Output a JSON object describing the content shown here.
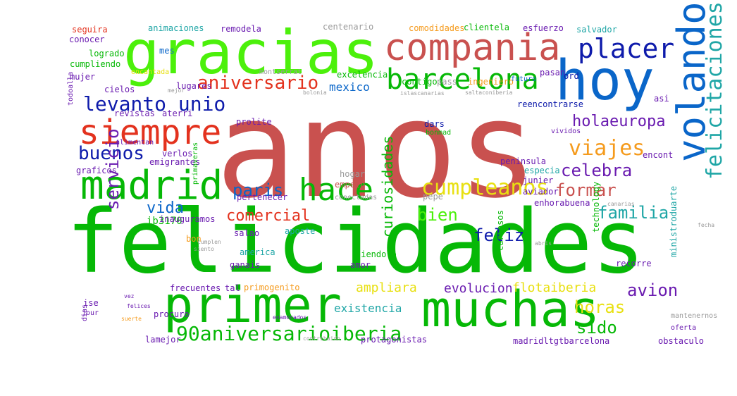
{
  "colors": {
    "red": "#e3321e",
    "brick": "#c9514f",
    "green": "#06b806",
    "lime": "#4cf00b",
    "blue": "#0a66c9",
    "navy": "#0e1bab",
    "purple": "#6a1bb0",
    "orange": "#f59b1d",
    "yellow": "#e8e011",
    "teal": "#1fa6a6",
    "gray": "#9a9a9a"
  },
  "words": [
    {
      "text": "anos",
      "color": "brick",
      "vertical": false
    },
    {
      "text": "felicidades",
      "color": "green",
      "vertical": false
    },
    {
      "text": "gracias",
      "color": "lime",
      "vertical": false
    },
    {
      "text": "hoy",
      "color": "blue",
      "vertical": false
    },
    {
      "text": "volando",
      "color": "blue",
      "vertical": true
    },
    {
      "text": "primer",
      "color": "green",
      "vertical": false
    },
    {
      "text": "muchas",
      "color": "green",
      "vertical": false
    },
    {
      "text": "compania",
      "color": "brick",
      "vertical": false
    },
    {
      "text": "madrid",
      "color": "green",
      "vertical": false
    },
    {
      "text": "siempre",
      "color": "red",
      "vertical": false
    },
    {
      "text": "barcelona",
      "color": "green",
      "vertical": false
    },
    {
      "text": "hace",
      "color": "green",
      "vertical": false
    },
    {
      "text": "placer",
      "color": "navy",
      "vertical": false
    },
    {
      "text": "felicitaciones",
      "color": "teal",
      "vertical": true
    },
    {
      "text": "cumpleanos",
      "color": "yellow",
      "vertical": false
    },
    {
      "text": "aniversario",
      "color": "red",
      "vertical": false
    },
    {
      "text": "levanto unio",
      "color": "navy",
      "vertical": false
    },
    {
      "text": "holaeuropa",
      "color": "purple",
      "vertical": false
    },
    {
      "text": "viajes",
      "color": "orange",
      "vertical": false
    },
    {
      "text": "buenos",
      "color": "navy",
      "vertical": false
    },
    {
      "text": "celebra",
      "color": "purple",
      "vertical": false
    },
    {
      "text": "formar",
      "color": "brick",
      "vertical": false
    },
    {
      "text": "paris",
      "color": "blue",
      "vertical": false
    },
    {
      "text": "comercial",
      "color": "red",
      "vertical": false
    },
    {
      "text": "bien",
      "color": "lime",
      "vertical": false
    },
    {
      "text": "familia",
      "color": "teal",
      "vertical": false
    },
    {
      "text": "vida",
      "color": "blue",
      "vertical": false
    },
    {
      "text": "feliz",
      "color": "navy",
      "vertical": false
    },
    {
      "text": "servicio",
      "color": "purple",
      "vertical": true
    },
    {
      "text": "avion",
      "color": "purple",
      "vertical": false
    },
    {
      "text": "horas",
      "color": "yellow",
      "vertical": false
    },
    {
      "text": "sido",
      "color": "green",
      "vertical": false
    },
    {
      "text": "90aniversarioiberia",
      "color": "green",
      "vertical": false
    },
    {
      "text": "mexico",
      "color": "blue",
      "vertical": false
    },
    {
      "text": "existencia",
      "color": "teal",
      "vertical": false
    },
    {
      "text": "evolucion",
      "color": "purple",
      "vertical": false
    },
    {
      "text": "ampliara",
      "color": "yellow",
      "vertical": false
    },
    {
      "text": "flotaiberia",
      "color": "yellow",
      "vertical": false
    },
    {
      "text": "curiosidades",
      "color": "green",
      "vertical": true
    },
    {
      "text": "seguira",
      "color": "red",
      "vertical": false
    },
    {
      "text": "animaciones",
      "color": "teal",
      "vertical": false
    },
    {
      "text": "remodela",
      "color": "purple",
      "vertical": false
    },
    {
      "text": "centenario",
      "color": "gray",
      "vertical": false
    },
    {
      "text": "comodidades",
      "color": "orange",
      "vertical": false
    },
    {
      "text": "clientela",
      "color": "green",
      "vertical": false
    },
    {
      "text": "esfuerzo",
      "color": "purple",
      "vertical": false
    },
    {
      "text": "salvador",
      "color": "teal",
      "vertical": false
    },
    {
      "text": "conocer",
      "color": "purple",
      "vertical": false
    },
    {
      "text": "logrado",
      "color": "green",
      "vertical": false
    },
    {
      "text": "mes",
      "color": "blue",
      "vertical": false
    },
    {
      "text": "cumpliendo",
      "color": "green",
      "vertical": false
    },
    {
      "text": "mujer",
      "color": "purple",
      "vertical": false
    },
    {
      "text": "encantada",
      "color": "yellow",
      "vertical": false
    },
    {
      "text": "montserrat",
      "color": "gray",
      "vertical": false
    },
    {
      "text": "excelencia",
      "color": "green",
      "vertical": false
    },
    {
      "text": "contigo",
      "color": "green",
      "vertical": false
    },
    {
      "text": "pass",
      "color": "gray",
      "vertical": false
    },
    {
      "text": "ingeniero",
      "color": "orange",
      "vertical": false
    },
    {
      "text": "futuro",
      "color": "blue",
      "vertical": false
    },
    {
      "text": "pasan",
      "color": "purple",
      "vertical": false
    },
    {
      "text": "ord",
      "color": "navy",
      "vertical": false
    },
    {
      "text": "lugares",
      "color": "purple",
      "vertical": false
    },
    {
      "text": "cielos",
      "color": "purple",
      "vertical": false
    },
    {
      "text": "mejor",
      "color": "gray",
      "vertical": false
    },
    {
      "text": "bolonia",
      "color": "gray",
      "vertical": false
    },
    {
      "text": "islascanarias",
      "color": "gray",
      "vertical": false
    },
    {
      "text": "saltaconiberia",
      "color": "gray",
      "vertical": false
    },
    {
      "text": "asi",
      "color": "purple",
      "vertical": false
    },
    {
      "text": "revistas",
      "color": "purple",
      "vertical": false
    },
    {
      "text": "aterri",
      "color": "purple",
      "vertical": false
    },
    {
      "text": "reencontrarse",
      "color": "navy",
      "vertical": false
    },
    {
      "text": "dars",
      "color": "navy",
      "vertical": false
    },
    {
      "text": "vividos",
      "color": "purple",
      "vertical": false
    },
    {
      "text": "prolite",
      "color": "purple",
      "vertical": false
    },
    {
      "text": "bonmad",
      "color": "green",
      "vertical": false
    },
    {
      "text": "encont",
      "color": "purple",
      "vertical": false
    },
    {
      "text": "alimentan",
      "color": "purple",
      "vertical": false
    },
    {
      "text": "verlos",
      "color": "purple",
      "vertical": false
    },
    {
      "text": "emigrantes",
      "color": "purple",
      "vertical": false
    },
    {
      "text": "graficos",
      "color": "purple",
      "vertical": false
    },
    {
      "text": "peninsula",
      "color": "purple",
      "vertical": false
    },
    {
      "text": "especia",
      "color": "teal",
      "vertical": false
    },
    {
      "text": "junier",
      "color": "purple",
      "vertical": false
    },
    {
      "text": "hogar",
      "color": "gray",
      "vertical": false
    },
    {
      "text": "empezo",
      "color": "brick",
      "vertical": false
    },
    {
      "text": "conectadas",
      "color": "gray",
      "vertical": false
    },
    {
      "text": "pepe",
      "color": "gray",
      "vertical": false
    },
    {
      "text": "aviador",
      "color": "purple",
      "vertical": false
    },
    {
      "text": "primaveras",
      "color": "green",
      "vertical": true
    },
    {
      "text": "pertenecer",
      "color": "purple",
      "vertical": false
    },
    {
      "text": "enhorabuena",
      "color": "purple",
      "vertical": false
    },
    {
      "text": "ib3170",
      "color": "green",
      "vertical": false
    },
    {
      "text": "inauguramos",
      "color": "purple",
      "vertical": false
    },
    {
      "text": "salao",
      "color": "purple",
      "vertical": false
    },
    {
      "text": "aposte",
      "color": "teal",
      "vertical": false
    },
    {
      "text": "bon",
      "color": "orange",
      "vertical": false
    },
    {
      "text": "america",
      "color": "teal",
      "vertical": false
    },
    {
      "text": "siendolo",
      "color": "green",
      "vertical": false
    },
    {
      "text": "ganais",
      "color": "purple",
      "vertical": false
    },
    {
      "text": "amor",
      "color": "purple",
      "vertical": false
    },
    {
      "text": "frecuentes",
      "color": "purple",
      "vertical": false
    },
    {
      "text": "tal",
      "color": "purple",
      "vertical": false
    },
    {
      "text": "primogenito",
      "color": "orange",
      "vertical": false
    },
    {
      "text": "recorre",
      "color": "purple",
      "vertical": false
    },
    {
      "text": "ise",
      "color": "purple",
      "vertical": false
    },
    {
      "text": "procuro",
      "color": "purple",
      "vertical": false
    },
    {
      "text": "lamejor",
      "color": "purple",
      "vertical": false
    },
    {
      "text": "protagonistas",
      "color": "purple",
      "vertical": false
    },
    {
      "text": "madridltgtbarcelona",
      "color": "purple",
      "vertical": false
    },
    {
      "text": "obstaculo",
      "color": "purple",
      "vertical": false
    },
    {
      "text": "oferta",
      "color": "purple",
      "vertical": false
    },
    {
      "text": "curiosos",
      "color": "green",
      "vertical": true
    },
    {
      "text": "technology",
      "color": "green",
      "vertical": true
    },
    {
      "text": "ministroduarte",
      "color": "teal",
      "vertical": true
    },
    {
      "text": "canarias",
      "color": "gray",
      "vertical": false
    },
    {
      "text": "mantenernos",
      "color": "gray",
      "vertical": false
    },
    {
      "text": "dias",
      "color": "purple",
      "vertical": true
    },
    {
      "text": "todoalla",
      "color": "purple",
      "vertical": true
    },
    {
      "text": "fecha",
      "color": "gray",
      "vertical": false
    },
    {
      "text": "siento",
      "color": "gray",
      "vertical": false
    },
    {
      "text": "cumplen",
      "color": "gray",
      "vertical": false
    },
    {
      "text": "abris",
      "color": "gray",
      "vertical": false
    },
    {
      "text": "jour",
      "color": "purple",
      "vertical": false
    },
    {
      "text": "vez",
      "color": "purple",
      "vertical": false
    },
    {
      "text": "felices",
      "color": "purple",
      "vertical": false
    },
    {
      "text": "suerte",
      "color": "orange",
      "vertical": false
    },
    {
      "text": "enamorados",
      "color": "purple",
      "vertical": false
    },
    {
      "text": "contribuido",
      "color": "gray",
      "vertical": false
    }
  ]
}
